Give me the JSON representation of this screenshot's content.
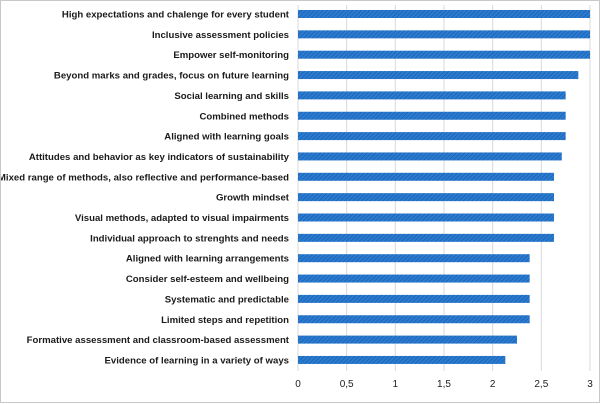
{
  "chart_data": {
    "type": "bar",
    "orientation": "horizontal",
    "categories": [
      "High expectations and chalenge for every student",
      "Inclusive assessment policies",
      "Empower self-monitoring",
      "Beyond marks and grades, focus on future learning",
      "Social learning and skills",
      "Combined methods",
      "Aligned with learning goals",
      "Attitudes and behavior as key indicators of sustainability",
      "Mixed range of methods, also reflective and performance-based",
      "Growth mindset",
      "Visual methods, adapted to visual impairments",
      "Individual approach to strenghts and needs",
      "Aligned with learning arrangements",
      "Consider self-esteem and wellbeing",
      "Systematic and predictable",
      "Limited steps and repetition",
      "Formative assessment and classroom-based assessment",
      "Evidence of learning in a variety of ways"
    ],
    "values": [
      3.0,
      3.0,
      3.0,
      2.88,
      2.75,
      2.75,
      2.75,
      2.71,
      2.63,
      2.63,
      2.63,
      2.63,
      2.38,
      2.38,
      2.38,
      2.38,
      2.25,
      2.13
    ],
    "xlim": [
      0,
      3
    ],
    "x_ticks": [
      "0",
      "0,5",
      "1",
      "1,5",
      "2",
      "2,5",
      "3"
    ],
    "x_tick_values": [
      0,
      0.5,
      1,
      1.5,
      2,
      2.5,
      3
    ],
    "grid": "vertical",
    "bar_color": "#1f6fc5",
    "grid_color": "#d9d9d9"
  }
}
